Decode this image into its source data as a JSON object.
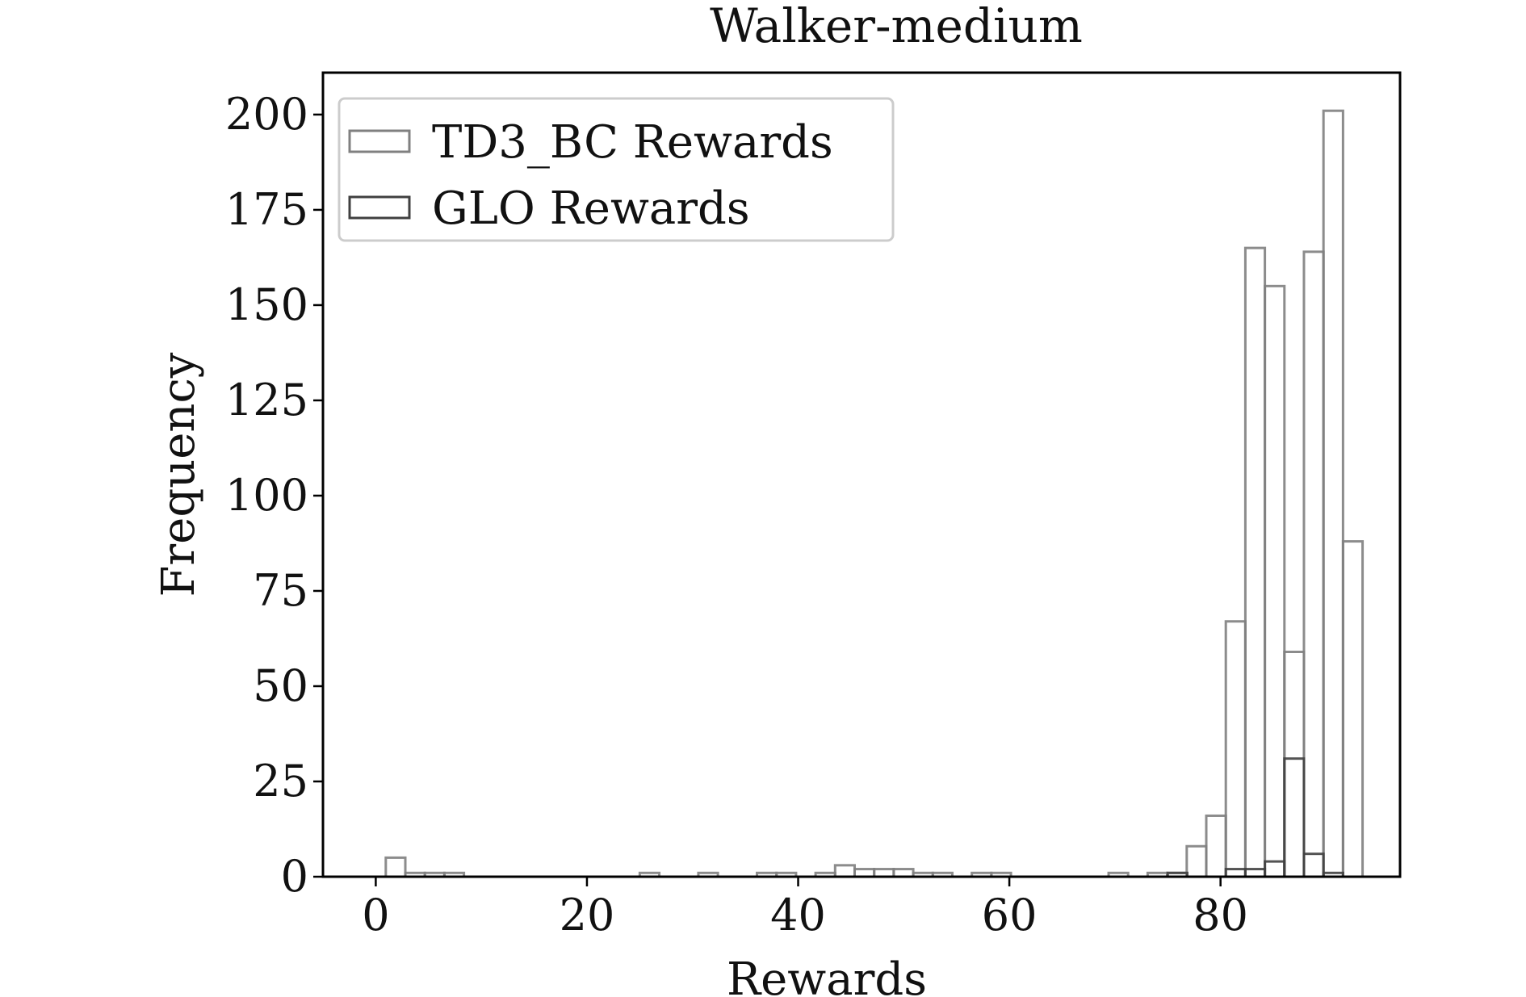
{
  "chart_data": {
    "type": "bar",
    "title": "Walker-medium",
    "xlabel": "Rewards",
    "ylabel": "Frequency",
    "xlim": [
      -5,
      97
    ],
    "ylim": [
      0,
      211
    ],
    "xticks": [
      0,
      20,
      40,
      60,
      80
    ],
    "yticks": [
      0,
      25,
      50,
      75,
      100,
      125,
      150,
      175,
      200
    ],
    "bin_width": 1.85,
    "legend_position": "top-left",
    "grid": false,
    "series": [
      {
        "name": "TD3_BC Rewards",
        "color": "#808080",
        "bins": [
          {
            "x": 0.95,
            "value": 5
          },
          {
            "x": 2.8,
            "value": 1
          },
          {
            "x": 4.65,
            "value": 1
          },
          {
            "x": 6.5,
            "value": 1
          },
          {
            "x": 25.0,
            "value": 1
          },
          {
            "x": 30.55,
            "value": 1
          },
          {
            "x": 36.1,
            "value": 1
          },
          {
            "x": 37.95,
            "value": 1
          },
          {
            "x": 41.65,
            "value": 1
          },
          {
            "x": 43.5,
            "value": 3
          },
          {
            "x": 45.35,
            "value": 2
          },
          {
            "x": 47.2,
            "value": 2
          },
          {
            "x": 49.05,
            "value": 2
          },
          {
            "x": 50.9,
            "value": 1
          },
          {
            "x": 52.75,
            "value": 1
          },
          {
            "x": 56.45,
            "value": 1
          },
          {
            "x": 58.3,
            "value": 1
          },
          {
            "x": 69.4,
            "value": 1
          },
          {
            "x": 73.1,
            "value": 1
          },
          {
            "x": 74.95,
            "value": 1
          },
          {
            "x": 76.8,
            "value": 8
          },
          {
            "x": 78.65,
            "value": 16
          },
          {
            "x": 80.5,
            "value": 67
          },
          {
            "x": 82.35,
            "value": 165
          },
          {
            "x": 84.2,
            "value": 155
          },
          {
            "x": 86.05,
            "value": 59
          },
          {
            "x": 87.9,
            "value": 164
          },
          {
            "x": 89.75,
            "value": 201
          },
          {
            "x": 91.6,
            "value": 88
          }
        ]
      },
      {
        "name": "GLO Rewards",
        "color": "#404040",
        "bins": [
          {
            "x": 75.0,
            "value": 1
          },
          {
            "x": 80.5,
            "value": 2
          },
          {
            "x": 82.35,
            "value": 2
          },
          {
            "x": 84.2,
            "value": 4
          },
          {
            "x": 86.05,
            "value": 31
          },
          {
            "x": 87.9,
            "value": 6
          },
          {
            "x": 89.75,
            "value": 1
          }
        ]
      }
    ]
  }
}
